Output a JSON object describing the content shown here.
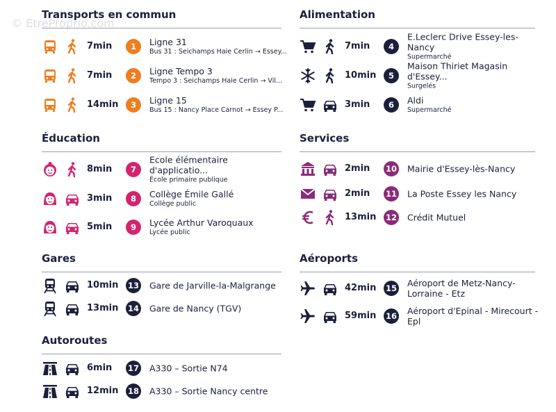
{
  "watermark": "© EtreProprio.com",
  "sections": [
    {
      "title": "Transports en commun",
      "color": "#ef7d1f",
      "items": [
        {
          "time": "7min",
          "number": 1,
          "name": "Ligne 31",
          "detail": "Bus 31 : Seichamps Haie Cerlin → Essey..."
        },
        {
          "time": "7min",
          "number": 2,
          "name": "Ligne Tempo 3",
          "detail": "Tempo 3 : Seichamps Haie Cerlin → Vil..."
        },
        {
          "time": "14min",
          "number": 3,
          "name": "Ligne 15",
          "detail": "Bus 15 : Nancy Place Carnot → Essey P..."
        }
      ]
    },
    {
      "title": "Éducation",
      "color": "#d4246f",
      "items": [
        {
          "time": "8min",
          "number": 7,
          "name": "Ecole élémentaire d'applicatio...",
          "detail": "École primaire publique"
        },
        {
          "time": "3min",
          "number": 8,
          "name": "Collège Émile Gallé",
          "detail": "Collège public"
        },
        {
          "time": "5min",
          "number": 9,
          "name": "Lycée Arthur Varoquaux",
          "detail": "Lycée public"
        }
      ]
    },
    {
      "title": "Gares",
      "color": "#1b1f3b",
      "items": [
        {
          "time": "10min",
          "number": 13,
          "name": "Gare de Jarville-la-Malgrange"
        },
        {
          "time": "13min",
          "number": 14,
          "name": "Gare de Nancy (TGV)"
        }
      ]
    },
    {
      "title": "Autoroutes",
      "color": "#1b1f3b",
      "items": [
        {
          "time": "6min",
          "number": 17,
          "name": "A330 – Sortie N74"
        },
        {
          "time": "12min",
          "number": 18,
          "name": "A330 – Sortie Nancy centre"
        }
      ]
    },
    {
      "title": "Alimentation",
      "color": "#1b1f3b",
      "items": [
        {
          "time": "7min",
          "number": 4,
          "name": "E.Leclerc Drive Essey-les-Nancy",
          "detail": "Supermarché"
        },
        {
          "time": "10min",
          "number": 5,
          "name": "Maison Thiriet Magasin d'Essey...",
          "detail": "Surgelés"
        },
        {
          "time": "3min",
          "number": 6,
          "name": "Aldi",
          "detail": "Supermarché"
        }
      ]
    },
    {
      "title": "Services",
      "color": "#8a2a7a",
      "items": [
        {
          "time": "2min",
          "number": 10,
          "name": "Mairie d'Essey-lès-Nancy"
        },
        {
          "time": "2min",
          "number": 11,
          "name": "La Poste Essey les Nancy"
        },
        {
          "time": "13min",
          "number": 12,
          "name": "Crédit Mutuel"
        }
      ]
    },
    {
      "title": "Aéroports",
      "color": "#1b1f3b",
      "items": [
        {
          "time": "42min",
          "number": 15,
          "name": "Aéroport de Metz-Nancy-Lorraine - Etz"
        },
        {
          "time": "59min",
          "number": 16,
          "name": "Aéroport d'Epinal - Mirecourt - Epl"
        }
      ]
    }
  ]
}
